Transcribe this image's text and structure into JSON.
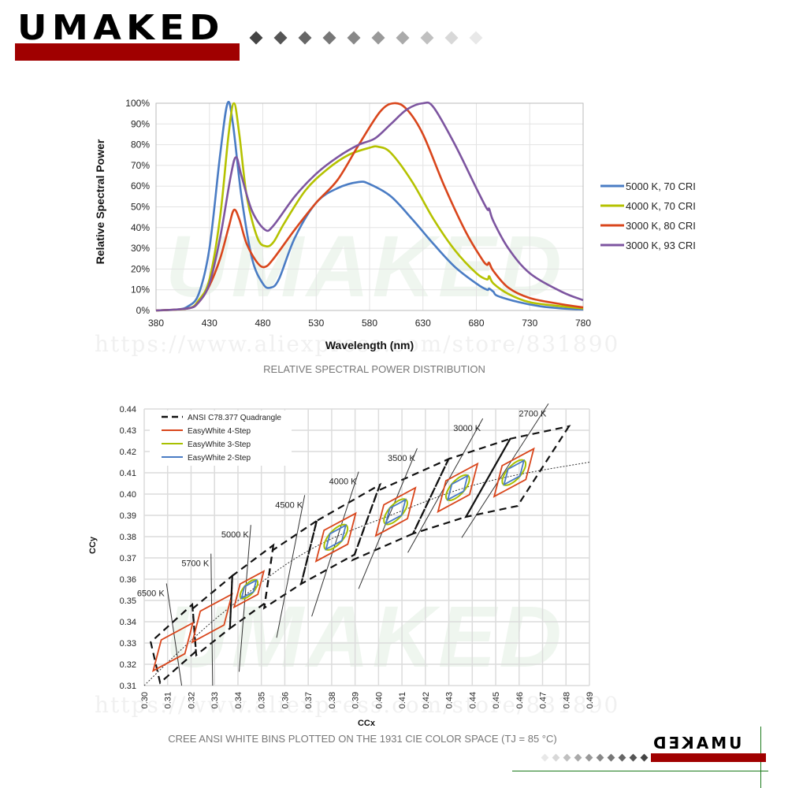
{
  "brand": {
    "logo_text": "UMAKED",
    "logo_text_mirrored": "UMAKED",
    "bar_color": "#a00000",
    "watermark": "UMAKED",
    "watermark_url": "https://www.aliexpress.com/store/831890"
  },
  "chart_data": [
    {
      "type": "line",
      "title": "",
      "caption": "RELATIVE SPECTRAL POWER DISTRIBUTION",
      "xlabel": "Wavelength (nm)",
      "ylabel": "Relative Spectral Power",
      "xlim": [
        380,
        780
      ],
      "ylim": [
        0,
        100
      ],
      "xticks": [
        "380",
        "430",
        "480",
        "530",
        "580",
        "630",
        "680",
        "730",
        "780"
      ],
      "yticks": [
        "0%",
        "10%",
        "20%",
        "30%",
        "40%",
        "50%",
        "60%",
        "70%",
        "80%",
        "90%",
        "100%"
      ],
      "grid": true,
      "legend_position": "right",
      "series": [
        {
          "name": "5000 K, 70 CRI",
          "color": "#4a7cc4",
          "points": [
            [
              380,
              0
            ],
            [
              400,
              0.5
            ],
            [
              410,
              2
            ],
            [
              420,
              8
            ],
            [
              430,
              30
            ],
            [
              440,
              75
            ],
            [
              447,
              100
            ],
            [
              452,
              90
            ],
            [
              460,
              55
            ],
            [
              470,
              25
            ],
            [
              480,
              13
            ],
            [
              487,
              11
            ],
            [
              495,
              15
            ],
            [
              510,
              35
            ],
            [
              530,
              52
            ],
            [
              550,
              59
            ],
            [
              570,
              62
            ],
            [
              580,
              61
            ],
            [
              600,
              55
            ],
            [
              620,
              44
            ],
            [
              640,
              32
            ],
            [
              660,
              21
            ],
            [
              680,
              13
            ],
            [
              690,
              10
            ],
            [
              692,
              10.5
            ],
            [
              696,
              9
            ],
            [
              700,
              7
            ],
            [
              720,
              4
            ],
            [
              740,
              2
            ],
            [
              760,
              1
            ],
            [
              780,
              0.5
            ]
          ]
        },
        {
          "name": "4000 K, 70 CRI",
          "color": "#b5c200",
          "points": [
            [
              380,
              0
            ],
            [
              410,
              1
            ],
            [
              420,
              5
            ],
            [
              430,
              15
            ],
            [
              440,
              45
            ],
            [
              448,
              85
            ],
            [
              453,
              100
            ],
            [
              458,
              85
            ],
            [
              465,
              55
            ],
            [
              475,
              35
            ],
            [
              483,
              31
            ],
            [
              490,
              33
            ],
            [
              500,
              42
            ],
            [
              520,
              58
            ],
            [
              540,
              68
            ],
            [
              560,
              75
            ],
            [
              580,
              78.5
            ],
            [
              588,
              79
            ],
            [
              600,
              76
            ],
            [
              620,
              62
            ],
            [
              640,
              44
            ],
            [
              660,
              29
            ],
            [
              680,
              18
            ],
            [
              690,
              15
            ],
            [
              692,
              16.5
            ],
            [
              696,
              13
            ],
            [
              710,
              8
            ],
            [
              730,
              4
            ],
            [
              760,
              2
            ],
            [
              780,
              1
            ]
          ]
        },
        {
          "name": "3000 K, 80 CRI",
          "color": "#d9461c",
          "points": [
            [
              380,
              0
            ],
            [
              410,
              1
            ],
            [
              420,
              4
            ],
            [
              430,
              12
            ],
            [
              440,
              25
            ],
            [
              448,
              40
            ],
            [
              453,
              48.5
            ],
            [
              458,
              44
            ],
            [
              465,
              32
            ],
            [
              475,
              23
            ],
            [
              482,
              21
            ],
            [
              490,
              25
            ],
            [
              510,
              39
            ],
            [
              530,
              52
            ],
            [
              550,
              63
            ],
            [
              570,
              80
            ],
            [
              590,
              96
            ],
            [
              603,
              100
            ],
            [
              615,
              97
            ],
            [
              630,
              85
            ],
            [
              650,
              60
            ],
            [
              670,
              38
            ],
            [
              685,
              25
            ],
            [
              690,
              22
            ],
            [
              692,
              23
            ],
            [
              696,
              19
            ],
            [
              710,
              11
            ],
            [
              730,
              6
            ],
            [
              760,
              3
            ],
            [
              780,
              1.5
            ]
          ]
        },
        {
          "name": "3000 K, 93 CRI",
          "color": "#7d55a0",
          "points": [
            [
              380,
              0
            ],
            [
              410,
              1
            ],
            [
              420,
              4
            ],
            [
              430,
              13
            ],
            [
              440,
              35
            ],
            [
              450,
              65
            ],
            [
              455,
              74
            ],
            [
              460,
              65
            ],
            [
              470,
              48
            ],
            [
              482,
              39
            ],
            [
              490,
              41
            ],
            [
              510,
              55
            ],
            [
              530,
              66
            ],
            [
              550,
              74
            ],
            [
              570,
              80
            ],
            [
              585,
              83
            ],
            [
              600,
              90
            ],
            [
              615,
              97
            ],
            [
              630,
              100
            ],
            [
              640,
              98
            ],
            [
              660,
              80
            ],
            [
              680,
              59
            ],
            [
              690,
              49
            ],
            [
              692,
              49
            ],
            [
              696,
              43
            ],
            [
              710,
              30
            ],
            [
              730,
              18
            ],
            [
              760,
              9
            ],
            [
              780,
              5
            ]
          ]
        }
      ]
    },
    {
      "type": "scatter",
      "caption": "CREE ANSI WHITE BINS PLOTTED ON THE 1931 CIE COLOR SPACE (TJ = 85 °C)",
      "xlabel": "CCx",
      "ylabel": "CCy",
      "xlim": [
        0.3,
        0.49
      ],
      "ylim": [
        0.31,
        0.44
      ],
      "xticks": [
        "0.30",
        "0.31",
        "0.32",
        "0.33",
        "0.34",
        "0.35",
        "0.36",
        "0.37",
        "0.38",
        "0.39",
        "0.40",
        "0.41",
        "0.42",
        "0.43",
        "0.44",
        "0.45",
        "0.46",
        "0.47",
        "0.48",
        "0.49"
      ],
      "yticks": [
        "0.31",
        "0.32",
        "0.33",
        "0.34",
        "0.35",
        "0.36",
        "0.37",
        "0.38",
        "0.39",
        "0.40",
        "0.41",
        "0.42",
        "0.43",
        "0.44"
      ],
      "grid": true,
      "legend_position": "top-left",
      "legend": [
        {
          "name": "ANSI C78.377 Quadrangle",
          "color": "#111111",
          "style": "dashed"
        },
        {
          "name": "EasyWhite 4-Step",
          "color": "#d9461c",
          "style": "solid"
        },
        {
          "name": "EasyWhite 3-Step",
          "color": "#a8c000",
          "style": "solid"
        },
        {
          "name": "EasyWhite 2-Step",
          "color": "#4a7cc4",
          "style": "solid"
        }
      ],
      "planckian_locus": [
        [
          0.3,
          0.31
        ],
        [
          0.313,
          0.324
        ],
        [
          0.329,
          0.34
        ],
        [
          0.346,
          0.355
        ],
        [
          0.362,
          0.368
        ],
        [
          0.38,
          0.379
        ],
        [
          0.405,
          0.39
        ],
        [
          0.434,
          0.402
        ],
        [
          0.459,
          0.409
        ],
        [
          0.49,
          0.415
        ]
      ],
      "bins": [
        {
          "cct": "6500 K",
          "quad": [
            [
              0.3205,
              0.3481
            ],
            [
              0.3221,
              0.3261
            ],
            [
              0.3068,
              0.3113
            ],
            [
              0.3028,
              0.3304
            ]
          ],
          "center": [
            0.3123,
            0.3282
          ],
          "steps": [
            4
          ],
          "scale": 1.0,
          "cct_line": [
            [
              0.3095,
              0.358
            ],
            [
              0.316,
              0.31
            ]
          ]
        },
        {
          "cct": "5700 K",
          "quad": [
            [
              0.3376,
              0.3616
            ],
            [
              0.3366,
              0.3369
            ],
            [
              0.3222,
              0.3243
            ],
            [
              0.3207,
              0.3462
            ]
          ],
          "center": [
            0.329,
            0.3417
          ],
          "steps": [
            4
          ],
          "scale": 1.0,
          "cct_line": [
            [
              0.3285,
              0.372
            ],
            [
              0.3292,
              0.31
            ]
          ]
        },
        {
          "cct": "5000 K",
          "quad": [
            [
              0.3551,
              0.376
            ],
            [
              0.3515,
              0.3487
            ],
            [
              0.3366,
              0.3369
            ],
            [
              0.3376,
              0.3616
            ]
          ],
          "center": [
            0.3447,
            0.3553
          ],
          "steps": [
            4,
            3,
            2
          ],
          "scale": 0.75,
          "cct_line": [
            [
              0.3455,
              0.3855
            ],
            [
              0.3405,
              0.3165
            ]
          ]
        },
        {
          "cct": "4500 K",
          "quad": [
            [
              0.3736,
              0.3874
            ],
            [
              0.367,
              0.3578
            ],
            [
              0.3512,
              0.3465
            ],
            [
              0.3548,
              0.3736
            ]
          ],
          "center": [
            0.3611,
            0.3658
          ],
          "steps": [],
          "scale": 1.0,
          "cct_line": [
            [
              0.3685,
              0.3995
            ],
            [
              0.3565,
              0.3325
            ]
          ]
        },
        {
          "cct": "4000 K",
          "quad": [
            [
              0.4006,
              0.4044
            ],
            [
              0.3898,
              0.3716
            ],
            [
              0.367,
              0.3578
            ],
            [
              0.3736,
              0.3874
            ]
          ],
          "center": [
            0.3818,
            0.3797
          ],
          "steps": [
            4,
            3,
            2
          ],
          "scale": 1.0,
          "cct_line": [
            [
              0.3915,
              0.4105
            ],
            [
              0.3715,
              0.3425
            ]
          ]
        },
        {
          "cct": "3500 K",
          "quad": [
            [
              0.4299,
              0.4165
            ],
            [
              0.4147,
              0.3814
            ],
            [
              0.3889,
              0.369
            ],
            [
              0.3996,
              0.4015
            ]
          ],
          "center": [
            0.4073,
            0.3917
          ],
          "steps": [
            4,
            3,
            2
          ],
          "scale": 1.0,
          "cct_line": [
            [
              0.4165,
              0.4215
            ],
            [
              0.3915,
              0.3555
            ]
          ]
        },
        {
          "cct": "3000 K",
          "quad": [
            [
              0.4562,
              0.426
            ],
            [
              0.4373,
              0.3893
            ],
            [
              0.4147,
              0.3814
            ],
            [
              0.4299,
              0.4165
            ]
          ],
          "center": [
            0.4338,
            0.403
          ],
          "steps": [
            4,
            3,
            2
          ],
          "scale": 1.0,
          "cct_line": [
            [
              0.4445,
              0.4355
            ],
            [
              0.4125,
              0.3725
            ]
          ]
        },
        {
          "cct": "2700 K",
          "quad": [
            [
              0.4813,
              0.4319
            ],
            [
              0.4593,
              0.3944
            ],
            [
              0.4373,
              0.3893
            ],
            [
              0.4562,
              0.426
            ]
          ],
          "center": [
            0.4578,
            0.4101
          ],
          "steps": [
            4,
            3,
            2
          ],
          "scale": 1.0,
          "cct_line": [
            [
              0.4725,
              0.4425
            ],
            [
              0.4355,
              0.3795
            ]
          ]
        }
      ]
    }
  ]
}
